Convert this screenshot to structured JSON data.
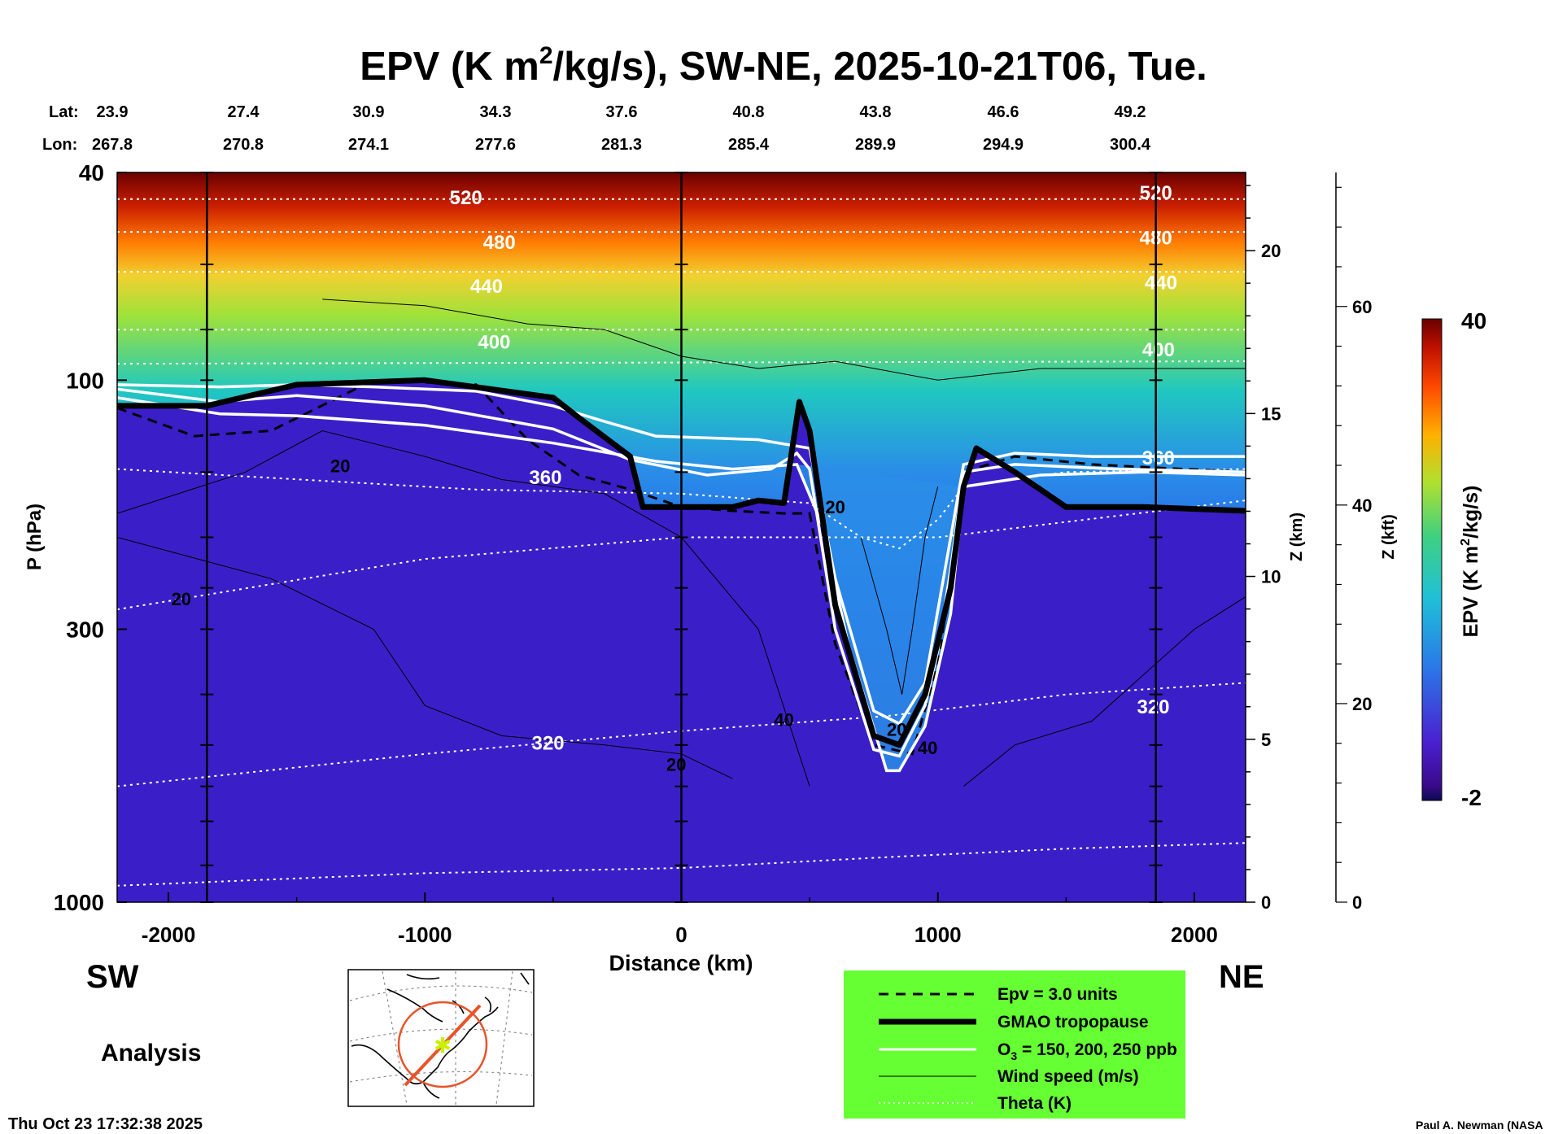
{
  "title": {
    "pre": "EPV (K m",
    "sup": "2",
    "post": "/kg/s), SW-NE, 2025-10-21T06, Tue."
  },
  "lat_label": "Lat:",
  "lon_label": "Lon:",
  "lats": [
    "23.9",
    "27.4",
    "30.9",
    "34.3",
    "37.6",
    "40.8",
    "43.8",
    "46.6",
    "49.2"
  ],
  "lons": [
    "267.8",
    "270.8",
    "274.1",
    "277.6",
    "281.3",
    "285.4",
    "289.9",
    "294.9",
    "300.4"
  ],
  "chart_data": {
    "type": "heatmap",
    "title": "EPV (K m2/kg/s), SW-NE, 2025-10-21T06, Tue.",
    "xlabel": "Distance (km)",
    "ylabel": "P (hPa)",
    "z_km_label": "Z (km)",
    "z_kft_label": "Z (kft)",
    "xlim": [
      -2200,
      2200
    ],
    "ylim": [
      1000,
      40
    ],
    "x_ticks": [
      -2000,
      -1000,
      0,
      1000,
      2000
    ],
    "x_tick_labels": [
      "-2000",
      "-1000",
      "0",
      "1000",
      "2000"
    ],
    "p_ticks": [
      40,
      100,
      300,
      1000
    ],
    "p_tick_labels": [
      "40",
      "100",
      "300",
      "1000"
    ],
    "z_km_ticks": [
      0,
      5,
      10,
      15,
      20
    ],
    "z_kft_ticks": [
      0,
      20,
      40,
      60
    ],
    "colorbar": {
      "label": "EPV (K m2/kg/s)",
      "min": -2,
      "max": 40,
      "min_label": "-2",
      "max_label": "40"
    },
    "theta_labels": [
      "520",
      "520",
      "480",
      "480",
      "440",
      "440",
      "400",
      "400",
      "360",
      "360",
      "320",
      "320"
    ],
    "wind_labels": [
      "20",
      "20",
      "20",
      "20",
      "40",
      "20",
      "40"
    ],
    "tropopause_p": [
      [
        -2200,
        112
      ],
      [
        -1850,
        112
      ],
      [
        -1500,
        102
      ],
      [
        -1000,
        100
      ],
      [
        -500,
        108
      ],
      [
        -400,
        118
      ],
      [
        -200,
        140
      ],
      [
        -150,
        175
      ],
      [
        200,
        175
      ],
      [
        300,
        170
      ],
      [
        400,
        172
      ],
      [
        460,
        110
      ],
      [
        500,
        125
      ],
      [
        600,
        270
      ],
      [
        750,
        480
      ],
      [
        850,
        500
      ],
      [
        950,
        400
      ],
      [
        1050,
        250
      ],
      [
        1100,
        160
      ],
      [
        1150,
        135
      ],
      [
        1300,
        150
      ],
      [
        1500,
        175
      ],
      [
        1800,
        175
      ],
      [
        2200,
        178
      ]
    ],
    "ozone_contours": [
      {
        "name": "150 ppb",
        "points": [
          [
            -2200,
            102
          ],
          [
            -1800,
            103
          ],
          [
            -1500,
            102
          ],
          [
            -1200,
            103
          ],
          [
            -800,
            105
          ],
          [
            -500,
            112
          ],
          [
            -300,
            120
          ],
          [
            -100,
            128
          ],
          [
            300,
            130
          ],
          [
            500,
            135
          ],
          [
            600,
            240
          ],
          [
            750,
            430
          ],
          [
            850,
            455
          ],
          [
            950,
            380
          ],
          [
            1050,
            200
          ],
          [
            1100,
            145
          ],
          [
            1300,
            138
          ],
          [
            1600,
            140
          ],
          [
            2200,
            140
          ]
        ]
      },
      {
        "name": "200 ppb",
        "points": [
          [
            -2200,
            104
          ],
          [
            -1800,
            110
          ],
          [
            -1500,
            107
          ],
          [
            -1000,
            112
          ],
          [
            -500,
            124
          ],
          [
            -200,
            142
          ],
          [
            100,
            152
          ],
          [
            350,
            148
          ],
          [
            450,
            138
          ],
          [
            500,
            148
          ],
          [
            600,
            300
          ],
          [
            750,
            510
          ],
          [
            850,
            525
          ],
          [
            950,
            420
          ],
          [
            1000,
            330
          ],
          [
            1050,
            230
          ],
          [
            1100,
            150
          ],
          [
            1300,
            145
          ],
          [
            1700,
            148
          ],
          [
            2200,
            150
          ]
        ]
      },
      {
        "name": "250 ppb",
        "points": [
          [
            -2200,
            108
          ],
          [
            -1800,
            116
          ],
          [
            -1500,
            117
          ],
          [
            -1000,
            122
          ],
          [
            -500,
            132
          ],
          [
            -100,
            143
          ],
          [
            200,
            148
          ],
          [
            450,
            145
          ],
          [
            550,
            190
          ],
          [
            650,
            320
          ],
          [
            800,
            560
          ],
          [
            850,
            560
          ],
          [
            950,
            460
          ],
          [
            1050,
            280
          ],
          [
            1100,
            160
          ],
          [
            1400,
            152
          ],
          [
            1800,
            150
          ],
          [
            2200,
            152
          ]
        ]
      }
    ],
    "epv_3_contour": [
      [
        -2200,
        113
      ],
      [
        -1900,
        128
      ],
      [
        -1600,
        125
      ],
      [
        -1200,
        100
      ],
      [
        -800,
        102
      ],
      [
        -600,
        130
      ],
      [
        -400,
        152
      ],
      [
        -200,
        162
      ],
      [
        0,
        175
      ],
      [
        200,
        178
      ],
      [
        400,
        180
      ],
      [
        500,
        180
      ],
      [
        600,
        320
      ],
      [
        750,
        500
      ],
      [
        900,
        520
      ],
      [
        1000,
        350
      ],
      [
        1050,
        240
      ],
      [
        1100,
        150
      ],
      [
        1300,
        140
      ],
      [
        1600,
        145
      ],
      [
        2200,
        150
      ]
    ]
  },
  "labels": {
    "sw": "SW",
    "ne": "NE",
    "analysis": "Analysis"
  },
  "legend": [
    {
      "label": "Epv = 3.0 units",
      "style": "dashed"
    },
    {
      "label": "GMAO tropopause",
      "style": "thick"
    },
    {
      "label_pre": "O",
      "label_sub": "3",
      "label_post": " = 150, 200, 250 ppb",
      "style": "white"
    },
    {
      "label": "Wind speed (m/s)",
      "style": "thin"
    },
    {
      "label": "Theta (K)",
      "style": "dotted"
    }
  ],
  "colors": {
    "legend_bg": "#66ff33",
    "map_line": "#e8542a",
    "map_star": "#c8f000"
  },
  "footer": {
    "timestamp": "Thu Oct 23 17:32:38 2025",
    "credit": "Paul A. Newman (NASA"
  }
}
